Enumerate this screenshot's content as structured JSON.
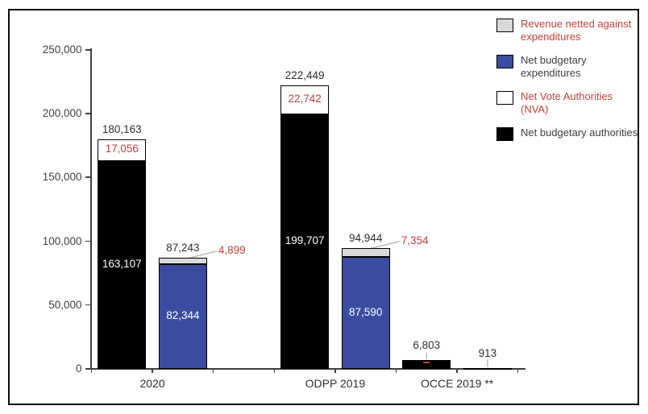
{
  "colors": {
    "authorities": "#000000",
    "expenditures": "#3B4CA0",
    "nva": "#FFFFFF",
    "revenue": "#D9D9D9",
    "red_label": "#C0413B",
    "dark_label": "#2e2e2e",
    "axis": "#3f3f3f",
    "leader": "#ababab",
    "inside_light_label": "#FFFFFF"
  },
  "legend": {
    "items": [
      {
        "key": "revenue",
        "label": "Revenue netted against expenditures",
        "color": "#D9D9D9",
        "text_color": "#C0413B"
      },
      {
        "key": "expenditures",
        "label": "Net budgetary expenditures",
        "color": "#3B4CA0",
        "text_color": "#3d3d3d"
      },
      {
        "key": "nva",
        "label": "Net Vote Authorities (NVA)",
        "color": "#FFFFFF",
        "text_color": "#C0413B"
      },
      {
        "key": "authorities",
        "label": "Net budgetary authorities",
        "color": "#000000",
        "text_color": "#3d3d3d"
      }
    ]
  },
  "chart_data": {
    "type": "bar",
    "stacked": true,
    "title": "",
    "xlabel": "",
    "ylabel": "",
    "grid": false,
    "legend_position": "top-right",
    "y_axis": {
      "min": 0,
      "max": 250000,
      "tick_interval": 50000,
      "tick_labels": [
        "0",
        "50,000",
        "100,000",
        "150,000",
        "200,000",
        "250,000"
      ]
    },
    "categories": [
      "2020",
      "ODPP 2019",
      "OCCE 2019 **"
    ],
    "groups": [
      {
        "category": "2020",
        "bars": [
          {
            "name": "authorities-stack",
            "total": 180163,
            "total_label": "180,163",
            "segments": [
              {
                "series": "authorities",
                "value": 163107,
                "label": "163,107",
                "label_pos": "inside"
              },
              {
                "series": "nva",
                "value": 17056,
                "label": "17,056",
                "label_pos": "inside"
              }
            ]
          },
          {
            "name": "expenditures-stack",
            "total": 87243,
            "total_label": "87,243",
            "segments": [
              {
                "series": "expenditures",
                "value": 82344,
                "label": "82,344",
                "label_pos": "inside"
              },
              {
                "series": "revenue",
                "value": 4899,
                "label": "4,899",
                "label_pos": "callout"
              }
            ]
          }
        ]
      },
      {
        "category": "ODPP 2019",
        "bars": [
          {
            "name": "authorities-stack",
            "total": 222449,
            "total_label": "222,449",
            "segments": [
              {
                "series": "authorities",
                "value": 199707,
                "label": "199,707",
                "label_pos": "inside"
              },
              {
                "series": "nva",
                "value": 22742,
                "label": "22,742",
                "label_pos": "inside"
              }
            ]
          },
          {
            "name": "expenditures-stack",
            "total": 94944,
            "total_label": "94,944",
            "segments": [
              {
                "series": "expenditures",
                "value": 87590,
                "label": "87,590",
                "label_pos": "inside"
              },
              {
                "series": "revenue",
                "value": 7354,
                "label": "7,354",
                "label_pos": "callout"
              }
            ]
          }
        ]
      },
      {
        "category": "OCCE 2019 **",
        "bars": [
          {
            "name": "authorities-stack",
            "total": 6803,
            "total_label": "6,803",
            "top_marker": true,
            "segments": [
              {
                "series": "authorities",
                "value": 6803,
                "label": "6,803",
                "label_pos": "none"
              }
            ]
          },
          {
            "name": "expenditures-stack",
            "total": 913,
            "total_label": "913",
            "segments": [
              {
                "series": "expenditures",
                "value": 913,
                "label": "913",
                "label_pos": "none"
              }
            ]
          }
        ]
      }
    ]
  }
}
